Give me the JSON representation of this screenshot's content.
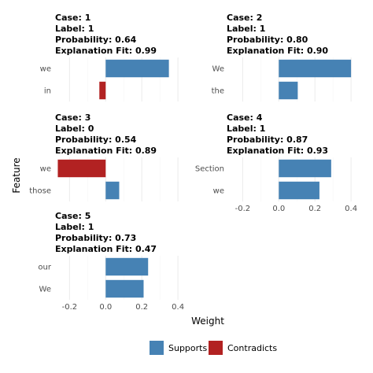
{
  "chart_data": {
    "type": "bar",
    "orientation": "horizontal",
    "xlabel": "Weight",
    "ylabel": "Feature",
    "xlim": [
      -0.28,
      0.43
    ],
    "xticks": [
      -0.2,
      0.0,
      0.2,
      0.4
    ],
    "xtick_labels": [
      "-0.2",
      "0.0",
      "0.2",
      "0.4"
    ],
    "grid": true,
    "legend": {
      "position": "bottom",
      "items": [
        {
          "label": "Supports",
          "color": "#4682B4"
        },
        {
          "label": "Contradicts",
          "color": "#B22222"
        }
      ]
    },
    "panels": [
      {
        "header": [
          "Case: 1",
          "Label: 1",
          "Probability: 0.64",
          "Explanation Fit: 0.99"
        ],
        "features": [
          "we",
          "in"
        ],
        "weights": [
          0.35,
          -0.035
        ],
        "show_xaxis": false
      },
      {
        "header": [
          "Case: 2",
          "Label: 1",
          "Probability: 0.80",
          "Explanation Fit: 0.90"
        ],
        "features": [
          "We",
          "the"
        ],
        "weights": [
          0.4,
          0.105
        ],
        "show_xaxis": false
      },
      {
        "header": [
          "Case: 3",
          "Label: 0",
          "Probability: 0.54",
          "Explanation Fit: 0.89"
        ],
        "features": [
          "we",
          "those"
        ],
        "weights": [
          -0.265,
          0.075
        ],
        "show_xaxis": false
      },
      {
        "header": [
          "Case: 4",
          "Label: 1",
          "Probability: 0.87",
          "Explanation Fit: 0.93"
        ],
        "features": [
          "Section",
          "we"
        ],
        "weights": [
          0.29,
          0.225
        ],
        "show_xaxis": true
      },
      {
        "header": [
          "Case: 5",
          "Label: 1",
          "Probability: 0.73",
          "Explanation Fit: 0.47"
        ],
        "features": [
          "our",
          "We"
        ],
        "weights": [
          0.235,
          0.21
        ],
        "show_xaxis": true
      }
    ]
  }
}
